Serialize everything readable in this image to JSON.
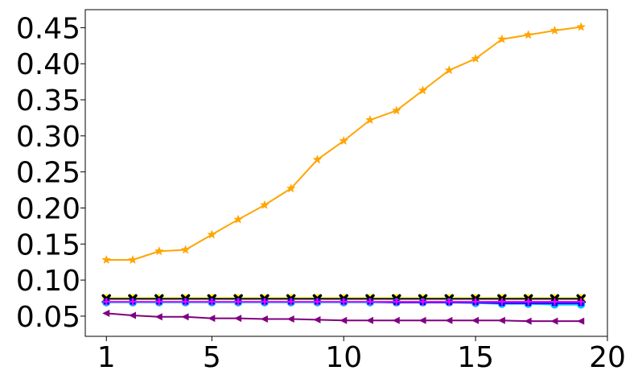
{
  "chart_data": {
    "type": "line",
    "title": "",
    "xlabel": "",
    "ylabel": "",
    "x": [
      1,
      2,
      3,
      4,
      5,
      6,
      7,
      8,
      9,
      10,
      11,
      12,
      13,
      14,
      15,
      16,
      17,
      18,
      19
    ],
    "xlim": [
      0.2,
      20
    ],
    "ylim": [
      0.022,
      0.475
    ],
    "xticks": [
      1,
      5,
      10,
      15,
      20
    ],
    "xtick_labels": [
      "1",
      "5",
      "10",
      "15",
      "20"
    ],
    "yticks": [
      0.05,
      0.1,
      0.15,
      0.2,
      0.25,
      0.3,
      0.35,
      0.4,
      0.45
    ],
    "ytick_labels": [
      "0.05",
      "0.10",
      "0.15",
      "0.20",
      "0.25",
      "0.30",
      "0.35",
      "0.40",
      "0.45"
    ],
    "grid": false,
    "legend": "none",
    "series": [
      {
        "color": "#ffa500",
        "marker": "star",
        "values": [
          0.128,
          0.128,
          0.14,
          0.142,
          0.163,
          0.184,
          0.204,
          0.227,
          0.267,
          0.293,
          0.322,
          0.335,
          0.363,
          0.391,
          0.407,
          0.434,
          0.44,
          0.446,
          0.451
        ]
      },
      {
        "color": "#ffff00",
        "marker": "circle",
        "values": [
          0.075,
          0.075,
          0.075,
          0.075,
          0.075,
          0.075,
          0.075,
          0.075,
          0.075,
          0.075,
          0.075,
          0.075,
          0.075,
          0.075,
          0.075,
          0.075,
          0.075,
          0.075,
          0.075
        ]
      },
      {
        "color": "#000000",
        "marker": "cross",
        "values": [
          0.074,
          0.074,
          0.074,
          0.074,
          0.074,
          0.074,
          0.074,
          0.074,
          0.074,
          0.074,
          0.074,
          0.074,
          0.074,
          0.074,
          0.074,
          0.074,
          0.074,
          0.074,
          0.074
        ]
      },
      {
        "color": "#00bfff",
        "marker": "circle",
        "values": [
          0.069,
          0.069,
          0.069,
          0.069,
          0.069,
          0.069,
          0.069,
          0.069,
          0.069,
          0.069,
          0.069,
          0.069,
          0.069,
          0.069,
          0.068,
          0.067,
          0.067,
          0.066,
          0.066
        ]
      },
      {
        "color": "#0000ff",
        "marker": "square",
        "values": [
          0.07,
          0.07,
          0.07,
          0.07,
          0.07,
          0.07,
          0.07,
          0.07,
          0.07,
          0.07,
          0.07,
          0.069,
          0.069,
          0.069,
          0.069,
          0.068,
          0.068,
          0.068,
          0.068
        ]
      },
      {
        "color": "#ff00ff",
        "marker": "plus",
        "values": [
          0.07,
          0.07,
          0.07,
          0.07,
          0.07,
          0.07,
          0.07,
          0.07,
          0.07,
          0.07,
          0.07,
          0.07,
          0.07,
          0.07,
          0.07,
          0.07,
          0.07,
          0.07,
          0.07
        ]
      },
      {
        "color": "#800080",
        "marker": "triangle-left",
        "values": [
          0.054,
          0.051,
          0.049,
          0.049,
          0.047,
          0.047,
          0.046,
          0.046,
          0.045,
          0.044,
          0.044,
          0.044,
          0.044,
          0.044,
          0.044,
          0.044,
          0.043,
          0.043,
          0.043
        ]
      }
    ]
  }
}
